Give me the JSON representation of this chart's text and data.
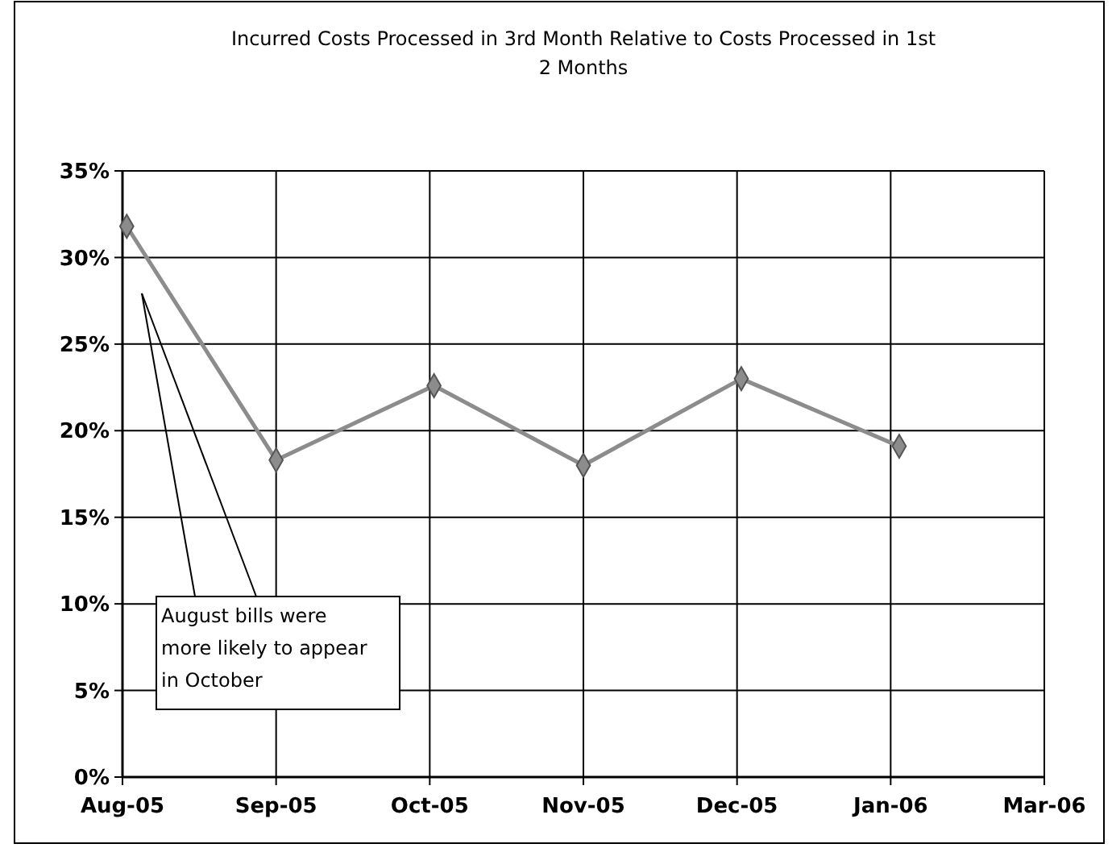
{
  "chart_data": {
    "type": "line",
    "title": "Incurred Costs Processed in 3rd Month Relative to Costs Processed in 1st 2 Months",
    "x": [
      "2005-08-02",
      "2005-09-06",
      "2005-10-13",
      "2005-11-17",
      "2005-12-24",
      "2006-01-30"
    ],
    "series": [
      {
        "color": "#8c8c8c",
        "values": [
          31.8,
          18.3,
          22.6,
          18.0,
          23.0,
          19.1
        ]
      }
    ],
    "xlim": [
      "2005-08-01",
      "2006-03-05"
    ],
    "xticks": [
      {
        "value": "2005-08-01",
        "label": "Aug-05"
      },
      {
        "value": "2005-09-06",
        "label": "Sep-05"
      },
      {
        "value": "2005-10-12",
        "label": "Oct-05"
      },
      {
        "value": "2005-11-17",
        "label": "Nov-05"
      },
      {
        "value": "2005-12-23",
        "label": "Dec-05"
      },
      {
        "value": "2006-01-28",
        "label": "Jan-06"
      },
      {
        "value": "2006-03-05",
        "label": "Mar-06"
      }
    ],
    "ylim": [
      0,
      35
    ],
    "yticks": [
      {
        "value": 0,
        "label": "0%"
      },
      {
        "value": 5,
        "label": "5%"
      },
      {
        "value": 10,
        "label": "10%"
      },
      {
        "value": 15,
        "label": "15%"
      },
      {
        "value": 20,
        "label": "20%"
      },
      {
        "value": 25,
        "label": "25%"
      },
      {
        "value": 30,
        "label": "30%"
      },
      {
        "value": 35,
        "label": "35%"
      }
    ],
    "grid": true,
    "marker": "diamond",
    "line_style": "solid",
    "annotations": [
      "August bills were more likely to appear in October"
    ]
  }
}
